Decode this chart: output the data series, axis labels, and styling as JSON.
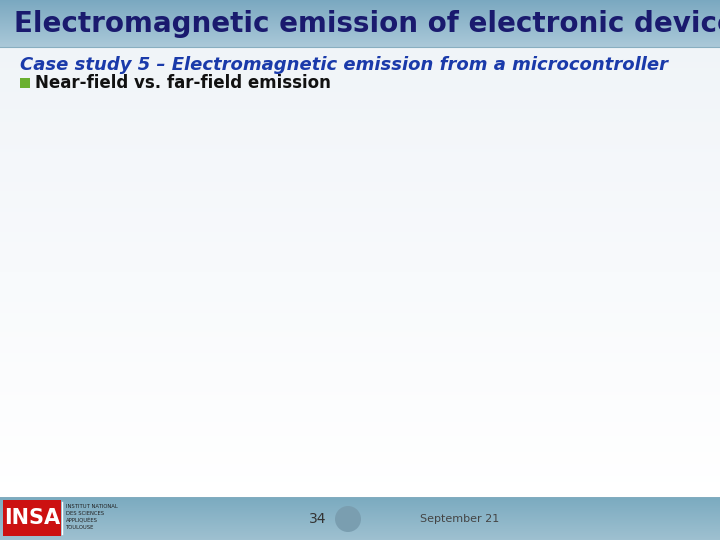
{
  "title": "Electromagnetic emission of electronic devices",
  "subtitle": "Case study 5 – Electromagnetic emission from a microcontroller",
  "bullet_text": "Near-field vs. far-field emission",
  "bullet_color": "#6ab030",
  "title_color": "#1a1a6e",
  "subtitle_color": "#1a3aaa",
  "page_number": "34",
  "footer_text": "September 21",
  "footer_circle_color": "#7a9eb0",
  "title_fontsize": 20,
  "subtitle_fontsize": 13,
  "bullet_fontsize": 12
}
